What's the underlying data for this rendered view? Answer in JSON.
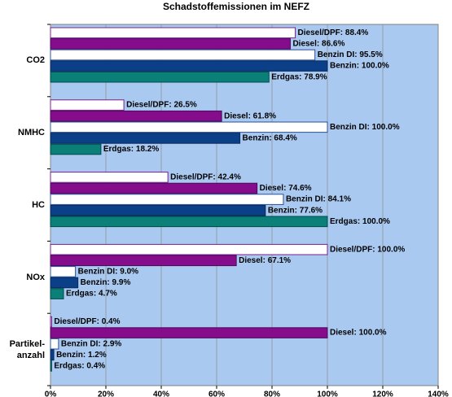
{
  "chart_data": {
    "type": "hbar",
    "title": "Schadstoffemissionen  im NEFZ",
    "categories": [
      "CO2",
      "NMHC",
      "HC",
      "NOx",
      "Partikel-\nanzahl"
    ],
    "series": [
      {
        "color": "#7a1f8c",
        "fill": "#ffffff",
        "values": [
          88.4,
          26.5,
          42.4,
          100,
          0.4
        ],
        "value_labels": [
          "Diesel/DPF: 88.4%",
          "Diesel/DPF: 26.5%",
          "Diesel/DPF: 42.4%",
          "Diesel/DPF: 100.0%",
          "Diesel/DPF: 0.4%"
        ]
      },
      {
        "color": "#4a0a5a",
        "fill": "#850c8a",
        "values": [
          86.6,
          61.8,
          74.6,
          67.1,
          100
        ],
        "value_labels": [
          "Diesel: 86.6%",
          "Diesel: 61.8%",
          "Diesel: 74.6%",
          "Diesel: 67.1%",
          "Diesel: 100.0%"
        ]
      },
      {
        "color": "#2a4f9a",
        "fill": "#ffffff",
        "values": [
          95.5,
          100,
          84.1,
          9.0,
          2.9
        ],
        "value_labels": [
          "Benzin DI: 95.5%",
          "Benzin DI: 100.0%",
          "Benzin DI: 84.1%",
          "Benzin DI: 9.0%",
          "Benzin DI: 2.9%"
        ]
      },
      {
        "color": "#0a2a5a",
        "fill": "#0b3f88",
        "values": [
          100,
          68.4,
          77.6,
          9.9,
          1.2
        ],
        "value_labels": [
          "Benzin: 100.0%",
          "Benzin: 68.4%",
          "Benzin: 77.6%",
          "Benzin: 9.9%",
          "Benzin: 1.2%"
        ]
      },
      {
        "color": "#004a4a",
        "fill": "#0a8078",
        "values": [
          78.9,
          18.2,
          100,
          4.7,
          0.4
        ],
        "value_labels": [
          "Erdgas: 78.9%",
          "Erdgas: 18.2%",
          "Erdgas: 100.0%",
          "Erdgas: 4.7%",
          "Erdgas: 0.4%"
        ]
      }
    ],
    "xlim": [
      0,
      140
    ],
    "xticks": [
      {
        "value": 0,
        "label": "0%"
      },
      {
        "value": 20,
        "label": "20%"
      },
      {
        "value": 40,
        "label": "40%"
      },
      {
        "value": 60,
        "label": "60%"
      },
      {
        "value": 80,
        "label": "80%"
      },
      {
        "value": 100,
        "label": "100%"
      },
      {
        "value": 120,
        "label": "120%"
      },
      {
        "value": 140,
        "label": "140%"
      }
    ],
    "grid": true,
    "background": "#a9c9f0"
  }
}
